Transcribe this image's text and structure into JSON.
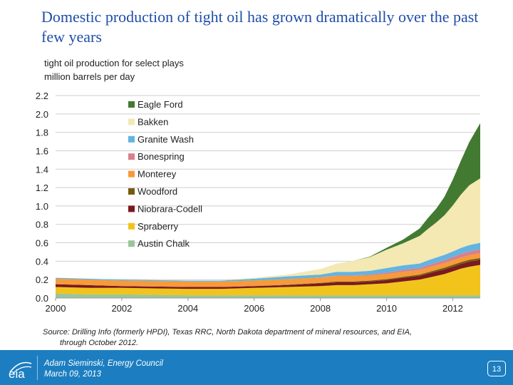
{
  "slide": {
    "title": "Domestic production of tight oil has grown dramatically over the past few years",
    "subtitle_line1": "tight oil production for select plays",
    "subtitle_line2": "million barrels per day",
    "source_line1": "Source:  Drilling Info (formerly HPDI), Texas RRC, North Dakota department of mineral resources, and EIA,",
    "source_line2": "through October 2012.",
    "footer_name": "Adam Sieminski, Energy Council",
    "footer_date": "March 09, 2013",
    "page_number": "13",
    "logo_text": "eia"
  },
  "colors": {
    "Eagle Ford": "#437a31",
    "Bakken": "#f4e8b3",
    "Granite Wash": "#63b4e2",
    "Bonespring": "#d9808a",
    "Monterey": "#f79a3a",
    "Woodford": "#735c12",
    "Niobrara-Codell": "#7a1a1e",
    "Spraberry": "#f2c31b",
    "Austin Chalk": "#9bc598",
    "footer": "#1c7ec0",
    "grid": "#cfcfcf"
  },
  "chart_data": {
    "type": "area",
    "stacked": true,
    "title": "tight oil production for select plays",
    "ylabel": "million barrels per day",
    "xlabel": "",
    "xlim": [
      2000,
      2012.83
    ],
    "ylim": [
      0,
      2.2
    ],
    "yticks": [
      "0.0",
      "0.2",
      "0.4",
      "0.6",
      "0.8",
      "1.0",
      "1.2",
      "1.4",
      "1.6",
      "1.8",
      "2.0",
      "2.2"
    ],
    "xticks": [
      "2000",
      "2002",
      "2004",
      "2006",
      "2008",
      "2010",
      "2012"
    ],
    "legend_order": [
      "Eagle Ford",
      "Bakken",
      "Granite Wash",
      "Bonespring",
      "Monterey",
      "Woodford",
      "Niobrara-Codell",
      "Spraberry",
      "Austin Chalk"
    ],
    "x": [
      2000,
      2001,
      2002,
      2003,
      2004,
      2005,
      2006,
      2007,
      2008,
      2008.5,
      2009,
      2009.5,
      2010,
      2010.5,
      2011,
      2011.25,
      2011.5,
      2011.75,
      2012,
      2012.25,
      2012.5,
      2012.83
    ],
    "series": [
      {
        "name": "Austin Chalk",
        "values": [
          0.05,
          0.04,
          0.04,
          0.035,
          0.03,
          0.03,
          0.03,
          0.03,
          0.03,
          0.03,
          0.03,
          0.03,
          0.03,
          0.03,
          0.03,
          0.03,
          0.03,
          0.03,
          0.03,
          0.03,
          0.03,
          0.03
        ]
      },
      {
        "name": "Spraberry",
        "values": [
          0.07,
          0.07,
          0.07,
          0.07,
          0.07,
          0.07,
          0.08,
          0.09,
          0.1,
          0.11,
          0.11,
          0.12,
          0.13,
          0.15,
          0.17,
          0.19,
          0.21,
          0.23,
          0.26,
          0.29,
          0.31,
          0.33
        ]
      },
      {
        "name": "Niobrara-Codell",
        "values": [
          0.03,
          0.03,
          0.02,
          0.02,
          0.02,
          0.02,
          0.02,
          0.02,
          0.03,
          0.03,
          0.03,
          0.03,
          0.035,
          0.04,
          0.04,
          0.045,
          0.05,
          0.05,
          0.05,
          0.05,
          0.055,
          0.055
        ]
      },
      {
        "name": "Woodford",
        "values": [
          0.0,
          0.0,
          0.0,
          0.0,
          0.0,
          0.0,
          0.0,
          0.005,
          0.005,
          0.01,
          0.01,
          0.01,
          0.01,
          0.01,
          0.015,
          0.015,
          0.015,
          0.02,
          0.02,
          0.02,
          0.02,
          0.02
        ]
      },
      {
        "name": "Monterey",
        "values": [
          0.06,
          0.06,
          0.06,
          0.06,
          0.06,
          0.06,
          0.06,
          0.06,
          0.06,
          0.06,
          0.06,
          0.055,
          0.055,
          0.055,
          0.05,
          0.05,
          0.05,
          0.05,
          0.05,
          0.05,
          0.05,
          0.05
        ]
      },
      {
        "name": "Bonespring",
        "values": [
          0.0,
          0.0,
          0.0,
          0.0,
          0.0,
          0.0,
          0.0,
          0.0,
          0.0,
          0.005,
          0.005,
          0.01,
          0.015,
          0.02,
          0.02,
          0.025,
          0.03,
          0.03,
          0.035,
          0.04,
          0.04,
          0.045
        ]
      },
      {
        "name": "Granite Wash",
        "values": [
          0.01,
          0.01,
          0.01,
          0.01,
          0.01,
          0.01,
          0.02,
          0.03,
          0.03,
          0.04,
          0.04,
          0.04,
          0.05,
          0.05,
          0.05,
          0.055,
          0.055,
          0.06,
          0.06,
          0.065,
          0.07,
          0.07
        ]
      },
      {
        "name": "Bakken",
        "values": [
          0.0,
          0.0,
          0.0,
          0.0,
          0.0,
          0.0,
          0.01,
          0.02,
          0.06,
          0.09,
          0.12,
          0.15,
          0.2,
          0.24,
          0.3,
          0.34,
          0.38,
          0.43,
          0.5,
          0.58,
          0.65,
          0.7
        ]
      },
      {
        "name": "Eagle Ford",
        "values": [
          0.0,
          0.0,
          0.0,
          0.0,
          0.0,
          0.0,
          0.0,
          0.0,
          0.0,
          0.0,
          0.0,
          0.005,
          0.02,
          0.04,
          0.08,
          0.12,
          0.15,
          0.2,
          0.28,
          0.37,
          0.47,
          0.6
        ]
      }
    ]
  }
}
